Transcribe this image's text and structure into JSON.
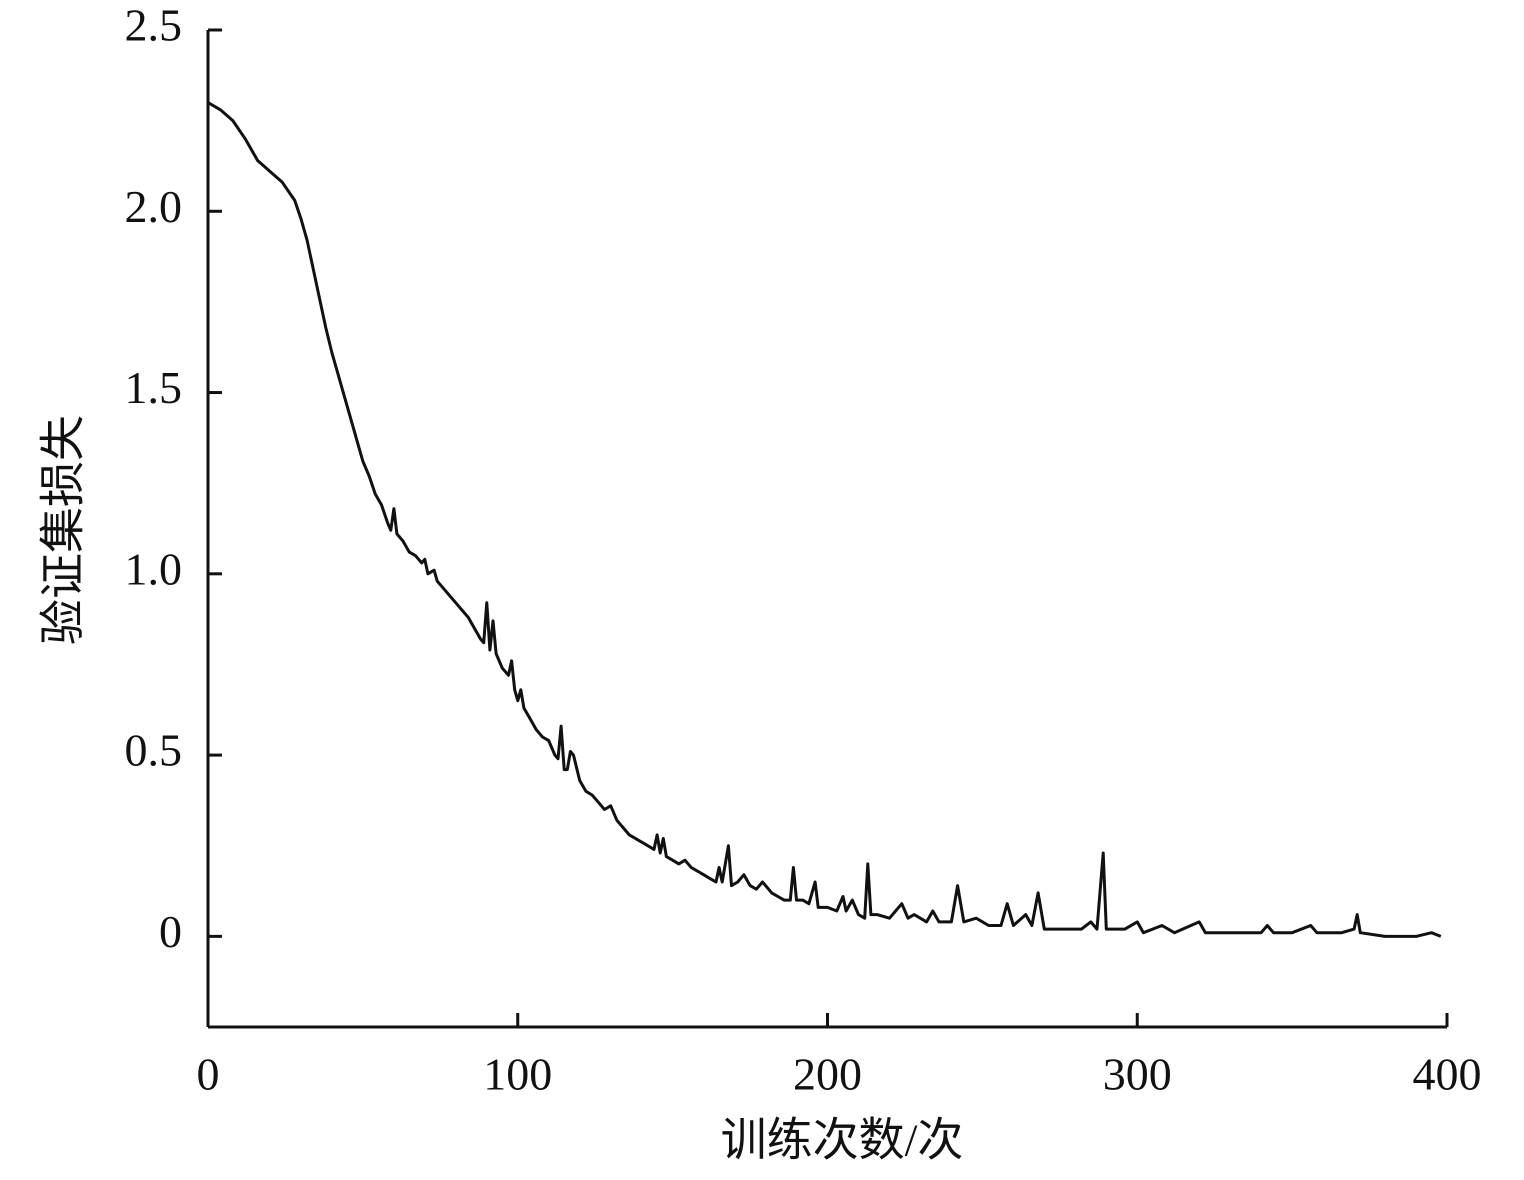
{
  "chart_data": {
    "type": "line",
    "x_label": "训练次数/次",
    "y_label": "验证集损失",
    "xlim": [
      0,
      400
    ],
    "xticks": [
      0,
      100,
      200,
      300,
      400
    ],
    "ylim": [
      -0.25,
      2.5
    ],
    "yticks": [
      0,
      0.5,
      {
        "value": 1,
        "label": "1.0"
      },
      1.5,
      {
        "value": 2,
        "label": "2.0"
      },
      2.5
    ],
    "color": "#111111",
    "x": [
      0,
      4,
      8,
      12,
      16,
      20,
      24,
      28,
      30,
      32,
      34,
      36,
      38,
      40,
      42,
      44,
      46,
      48,
      50,
      52,
      54,
      56,
      58,
      59,
      60,
      61,
      63,
      65,
      67,
      69,
      70,
      71,
      73,
      74,
      76,
      78,
      80,
      82,
      84,
      86,
      88,
      89,
      90,
      91,
      92,
      93,
      95,
      97,
      98,
      99,
      100,
      101,
      102,
      104,
      106,
      108,
      110,
      112,
      113,
      114,
      115,
      116,
      117,
      118,
      120,
      122,
      124,
      126,
      128,
      130,
      132,
      134,
      136,
      138,
      140,
      142,
      144,
      145,
      146,
      147,
      148,
      150,
      152,
      154,
      156,
      158,
      160,
      162,
      164,
      165,
      166,
      168,
      169,
      171,
      173,
      175,
      177,
      179,
      180,
      182,
      184,
      186,
      188,
      189,
      190,
      192,
      194,
      196,
      197,
      200,
      203,
      205,
      206,
      208,
      210,
      212,
      213,
      214,
      216,
      220,
      222,
      224,
      226,
      228,
      232,
      234,
      236,
      240,
      242,
      244,
      248,
      252,
      256,
      258,
      260,
      264,
      266,
      268,
      270,
      276,
      282,
      285,
      287,
      289,
      290,
      296,
      300,
      302,
      308,
      312,
      320,
      322,
      330,
      340,
      342,
      344,
      350,
      356,
      358,
      366,
      370,
      371,
      372,
      380,
      390,
      395,
      398
    ],
    "values": [
      2.3,
      2.28,
      2.25,
      2.2,
      2.14,
      2.11,
      2.08,
      2.03,
      1.98,
      1.92,
      1.84,
      1.76,
      1.68,
      1.61,
      1.55,
      1.49,
      1.43,
      1.37,
      1.31,
      1.27,
      1.22,
      1.19,
      1.14,
      1.12,
      1.18,
      1.11,
      1.09,
      1.06,
      1.05,
      1.03,
      1.04,
      1.0,
      1.01,
      0.98,
      0.96,
      0.94,
      0.92,
      0.9,
      0.88,
      0.85,
      0.82,
      0.81,
      0.92,
      0.79,
      0.87,
      0.78,
      0.74,
      0.72,
      0.76,
      0.68,
      0.65,
      0.68,
      0.63,
      0.6,
      0.57,
      0.55,
      0.54,
      0.5,
      0.49,
      0.58,
      0.46,
      0.46,
      0.51,
      0.5,
      0.43,
      0.4,
      0.39,
      0.37,
      0.35,
      0.36,
      0.32,
      0.3,
      0.28,
      0.27,
      0.26,
      0.25,
      0.24,
      0.28,
      0.23,
      0.27,
      0.22,
      0.21,
      0.2,
      0.21,
      0.19,
      0.18,
      0.17,
      0.16,
      0.15,
      0.19,
      0.15,
      0.25,
      0.14,
      0.15,
      0.17,
      0.14,
      0.13,
      0.15,
      0.14,
      0.12,
      0.11,
      0.1,
      0.1,
      0.19,
      0.1,
      0.1,
      0.09,
      0.15,
      0.08,
      0.08,
      0.07,
      0.11,
      0.07,
      0.1,
      0.06,
      0.05,
      0.2,
      0.06,
      0.06,
      0.05,
      0.07,
      0.09,
      0.05,
      0.06,
      0.04,
      0.07,
      0.04,
      0.04,
      0.14,
      0.04,
      0.05,
      0.03,
      0.03,
      0.09,
      0.03,
      0.06,
      0.03,
      0.12,
      0.02,
      0.02,
      0.02,
      0.04,
      0.02,
      0.23,
      0.02,
      0.02,
      0.04,
      0.01,
      0.03,
      0.01,
      0.04,
      0.01,
      0.01,
      0.01,
      0.03,
      0.01,
      0.01,
      0.03,
      0.01,
      0.01,
      0.02,
      0.06,
      0.01,
      0.0,
      0.0,
      0.01,
      0.0
    ]
  }
}
